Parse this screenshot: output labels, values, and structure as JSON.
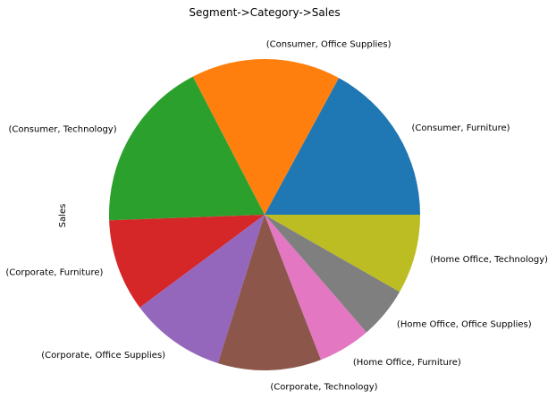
{
  "chart_data": {
    "type": "pie",
    "title": "Segment->Category->Sales",
    "ylabel": "Sales",
    "legend": "none",
    "categories": [
      "(Consumer, Furniture)",
      "(Consumer, Office Supplies)",
      "(Consumer, Technology)",
      "(Corporate, Furniture)",
      "(Corporate, Office Supplies)",
      "(Corporate, Technology)",
      "(Home Office, Furniture)",
      "(Home Office, Office Supplies)",
      "(Home Office, Technology)"
    ],
    "values": [
      17.8,
      16.2,
      18.7,
      10.0,
      10.4,
      11.2,
      5.7,
      5.6,
      8.6
    ],
    "colors": [
      "#1f77b4",
      "#ff7f0e",
      "#2ca02c",
      "#d62728",
      "#9467bd",
      "#8c564b",
      "#e377c2",
      "#7f7f7f",
      "#bcbd22"
    ]
  }
}
